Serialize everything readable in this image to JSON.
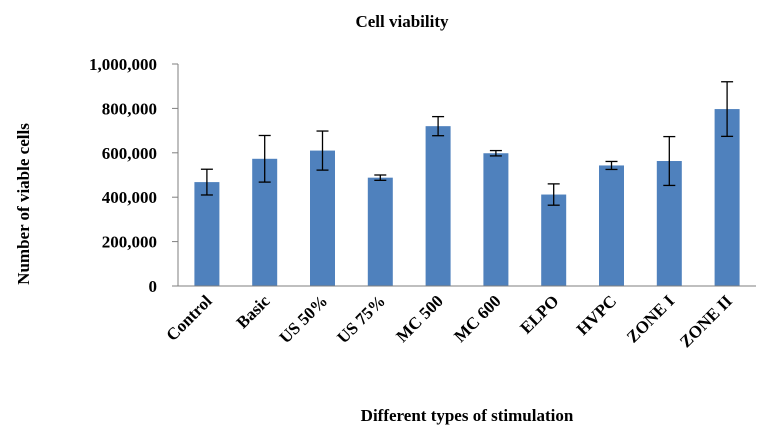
{
  "chart_data": {
    "type": "bar",
    "title": "Cell viability",
    "xlabel": "Different types of stimulation",
    "ylabel": "Number of viable cells",
    "categories": [
      "Control",
      "Basic",
      "US 50%",
      "US 75%",
      "MC 500",
      "MC 600",
      "ELPO",
      "HVPC",
      "ZONE I",
      "ZONE II"
    ],
    "series": [
      {
        "values": [
          468000,
          573000,
          610000,
          488000,
          720000,
          598000,
          412000,
          543000,
          563000,
          797000
        ],
        "error": [
          58000,
          105000,
          88000,
          12000,
          43000,
          12000,
          48000,
          18000,
          110000,
          123000
        ]
      }
    ],
    "ylim": [
      0,
      1000000
    ],
    "yticks": [
      0,
      200000,
      400000,
      600000,
      800000,
      1000000
    ],
    "ytick_labels": [
      "0",
      "200,000",
      "400,000",
      "600,000",
      "800,000",
      "1,000,000"
    ],
    "bar_color": "#4f81bd",
    "grid": false,
    "legend": "none"
  }
}
